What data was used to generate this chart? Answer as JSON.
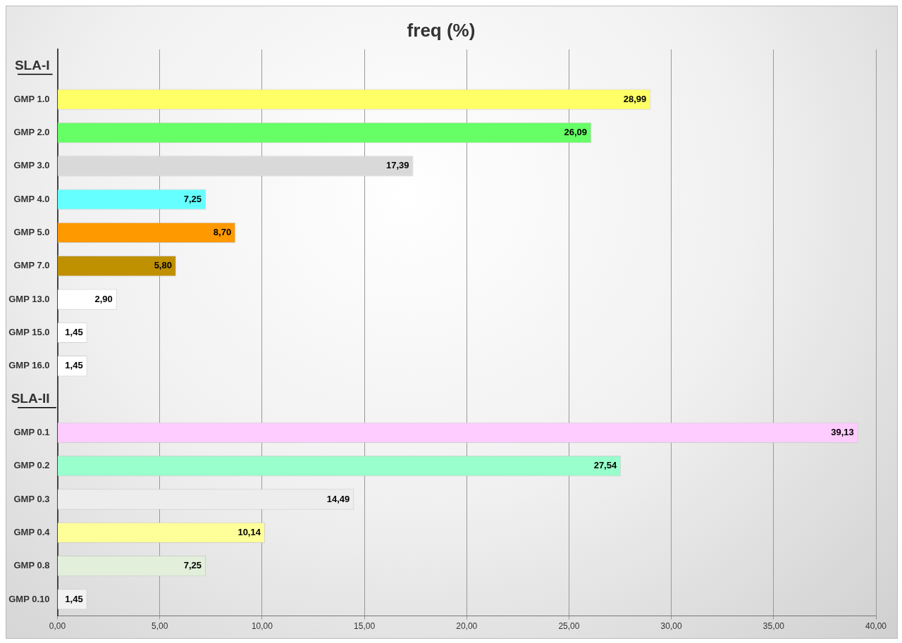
{
  "chart_data": {
    "type": "bar",
    "orientation": "horizontal",
    "title": "freq (%)",
    "categories": [
      "SLA-I",
      "GMP 1.0",
      "GMP 2.0",
      "GMP 3.0",
      "GMP 4.0",
      "GMP 5.0",
      "GMP 7.0",
      "GMP 13.0",
      "GMP 15.0",
      "GMP 16.0",
      "SLA-II",
      "GMP 0.1",
      "GMP 0.2",
      "GMP 0.3",
      "GMP 0.4",
      "GMP 0.8",
      "GMP 0.10"
    ],
    "values": [
      null,
      28.99,
      26.09,
      17.39,
      7.25,
      8.7,
      5.8,
      2.9,
      1.45,
      1.45,
      null,
      39.13,
      27.54,
      14.49,
      10.14,
      7.25,
      1.45
    ],
    "value_labels": [
      null,
      "28,99",
      "26,09",
      "17,39",
      "7,25",
      "8,70",
      "5,80",
      "2,90",
      "1,45",
      "1,45",
      null,
      "39,13",
      "27,54",
      "14,49",
      "10,14",
      "7,25",
      "1,45"
    ],
    "colors": [
      "#ffffff",
      "#ffff66",
      "#66ff66",
      "#d9d9d9",
      "#66ffff",
      "#ff9900",
      "#bf9000",
      "#ffffff",
      "#ffffff",
      "#ffffff",
      "#ffffff",
      "#ffccff",
      "#99ffcc",
      "#ededed",
      "#ffff99",
      "#e2efda",
      "#f2f2f2"
    ],
    "xlim": [
      0,
      40
    ],
    "xticks": [
      {
        "value": 0,
        "label": "0,00"
      },
      {
        "value": 5,
        "label": "5,00"
      },
      {
        "value": 10,
        "label": "10,00"
      },
      {
        "value": 15,
        "label": "15,00"
      },
      {
        "value": 20,
        "label": "20,00"
      },
      {
        "value": 25,
        "label": "25,00"
      },
      {
        "value": 30,
        "label": "30,00"
      },
      {
        "value": 35,
        "label": "35,00"
      },
      {
        "value": 40,
        "label": "40,00"
      }
    ],
    "grid": "x",
    "legend": false
  }
}
